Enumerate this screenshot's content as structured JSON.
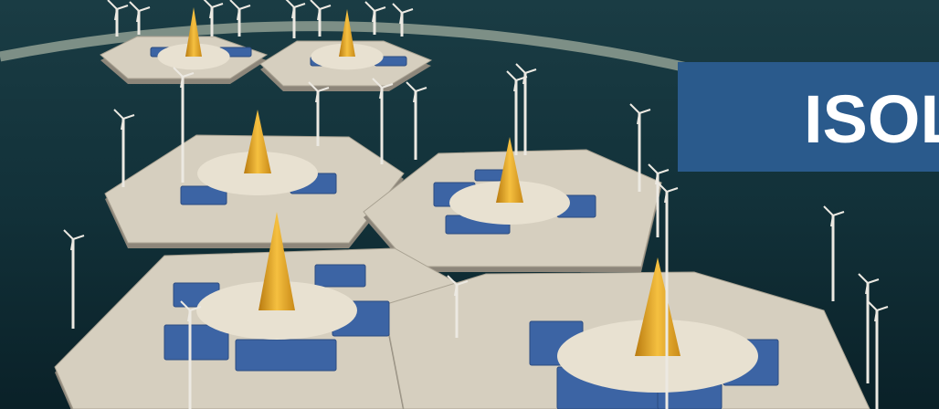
{
  "banner": {
    "text": "ISOL"
  }
}
